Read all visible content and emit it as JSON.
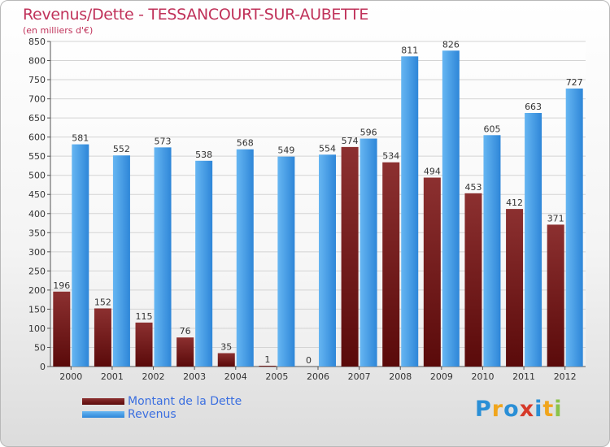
{
  "title": "Revenus/Dette - TESSANCOURT-SUR-AUBETTE",
  "subtitle": "(en milliers d'€)",
  "legend": {
    "dette_label": "Montant de la Dette",
    "revenus_label": "Revenus"
  },
  "logo": {
    "letters": [
      "P",
      "r",
      "o",
      "x",
      "i",
      "t",
      "i"
    ]
  },
  "colors": {
    "dette_dark": "#5a0a0a",
    "dette_light": "#8c3030",
    "revenus_dark": "#2e86d8",
    "revenus_light": "#66b6f2",
    "title": "#c0325a",
    "legend_text": "#3b6fe0",
    "logo": [
      "#2a8fd6",
      "#f0a51c",
      "#2a8fd6",
      "#d63a2a",
      "#2a8fd6",
      "#f0a51c",
      "#8bc34a"
    ]
  },
  "chart_data": {
    "type": "bar",
    "title": "Revenus/Dette - TESSANCOURT-SUR-AUBETTE",
    "ylabel": "(en milliers d'€)",
    "xlabel": "",
    "categories": [
      "2000",
      "2001",
      "2002",
      "2003",
      "2004",
      "2005",
      "2006",
      "2007",
      "2008",
      "2009",
      "2010",
      "2011",
      "2012"
    ],
    "series": [
      {
        "name": "Montant de la Dette",
        "values": [
          196,
          152,
          115,
          76,
          35,
          1,
          0,
          574,
          534,
          494,
          453,
          412,
          371
        ]
      },
      {
        "name": "Revenus",
        "values": [
          581,
          552,
          573,
          538,
          568,
          549,
          554,
          596,
          811,
          826,
          605,
          663,
          727
        ]
      }
    ],
    "ylim": [
      0,
      850
    ],
    "yticks": [
      0,
      50,
      100,
      150,
      200,
      250,
      300,
      350,
      400,
      450,
      500,
      550,
      600,
      650,
      700,
      750,
      800,
      850
    ],
    "grid": true,
    "legend_position": "bottom-left"
  }
}
